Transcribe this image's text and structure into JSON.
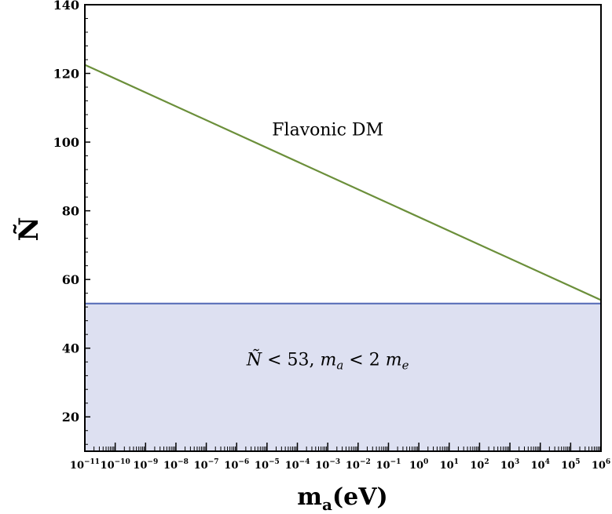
{
  "chart_data": {
    "type": "line",
    "title": "",
    "xlabel": {
      "main": "m",
      "sub": "a",
      "unit": "(eV)"
    },
    "ylabel": "Ñ",
    "x_scale": "log",
    "xlim_exponents": [
      -11,
      6
    ],
    "ylim": [
      10,
      140
    ],
    "x_ticks": [
      {
        "base": "10",
        "exp": "−11"
      },
      {
        "base": "10",
        "exp": "−10"
      },
      {
        "base": "10",
        "exp": "−9"
      },
      {
        "base": "10",
        "exp": "−8"
      },
      {
        "base": "10",
        "exp": "−7"
      },
      {
        "base": "10",
        "exp": "−6"
      },
      {
        "base": "10",
        "exp": "−5"
      },
      {
        "base": "10",
        "exp": "−4"
      },
      {
        "base": "10",
        "exp": "−3"
      },
      {
        "base": "10",
        "exp": "−2"
      },
      {
        "base": "10",
        "exp": "−1"
      },
      {
        "base": "10",
        "exp": "0"
      },
      {
        "base": "10",
        "exp": "1"
      },
      {
        "base": "10",
        "exp": "2"
      },
      {
        "base": "10",
        "exp": "3"
      },
      {
        "base": "10",
        "exp": "4"
      },
      {
        "base": "10",
        "exp": "5"
      },
      {
        "base": "10",
        "exp": "6"
      }
    ],
    "y_ticks": [
      "20",
      "40",
      "60",
      "80",
      "100",
      "120",
      "140"
    ],
    "y_tick_values": [
      20,
      40,
      60,
      80,
      100,
      120,
      140
    ],
    "grid": false,
    "series": [
      {
        "name": "Flavonic DM",
        "color": "#6b8f3a",
        "points": [
          {
            "x": 1e-11,
            "y": 122.5
          },
          {
            "x": 1000000.0,
            "y": 54
          }
        ]
      },
      {
        "name": "",
        "color": "#5a6fb8",
        "points": [
          {
            "x": 1e-11,
            "y": 53
          },
          {
            "x": 1000000.0,
            "y": 53
          }
        ]
      }
    ],
    "shaded_region": {
      "y_min": 10,
      "y_max": 53,
      "fill": "#dde0f1",
      "edge": "#5a6fb8"
    },
    "annotations": {
      "line_label": "Flavonic DM",
      "line_label_at": {
        "x": 0.001,
        "y": 102
      },
      "region_label": {
        "n": "Ñ",
        "lt1": " < 53, ",
        "m1": "m",
        "s1": "a",
        "lt2": " < 2 ",
        "m2": "m",
        "s2": "e"
      },
      "region_label_at": {
        "x": 0.001,
        "y": 35
      }
    }
  }
}
